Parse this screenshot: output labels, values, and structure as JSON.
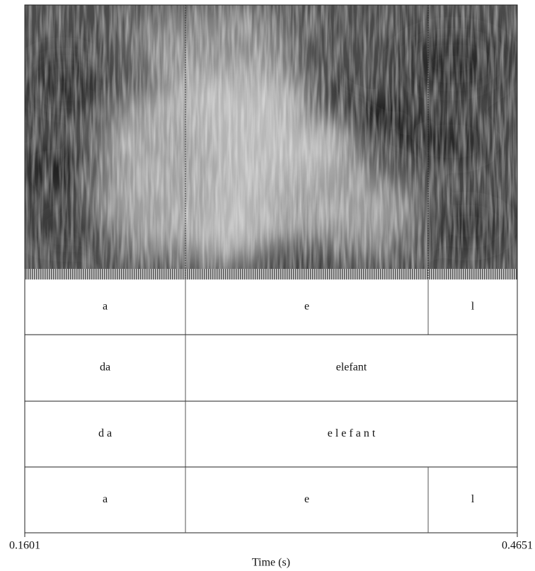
{
  "time_axis": {
    "start": 0.1601,
    "end": 0.4651,
    "label": "Time (s)"
  },
  "tiers": [
    {
      "boundaries": [
        0.2596,
        0.4099
      ],
      "labels": [
        "a",
        "e",
        "l"
      ]
    },
    {
      "boundaries": [
        0.2596
      ],
      "labels": [
        "da",
        "elefant"
      ]
    },
    {
      "boundaries": [
        0.2596
      ],
      "labels": [
        "d a",
        "e l e f a n t"
      ]
    },
    {
      "boundaries": [
        0.2596,
        0.4099
      ],
      "labels": [
        "a",
        "e",
        "l"
      ]
    }
  ]
}
